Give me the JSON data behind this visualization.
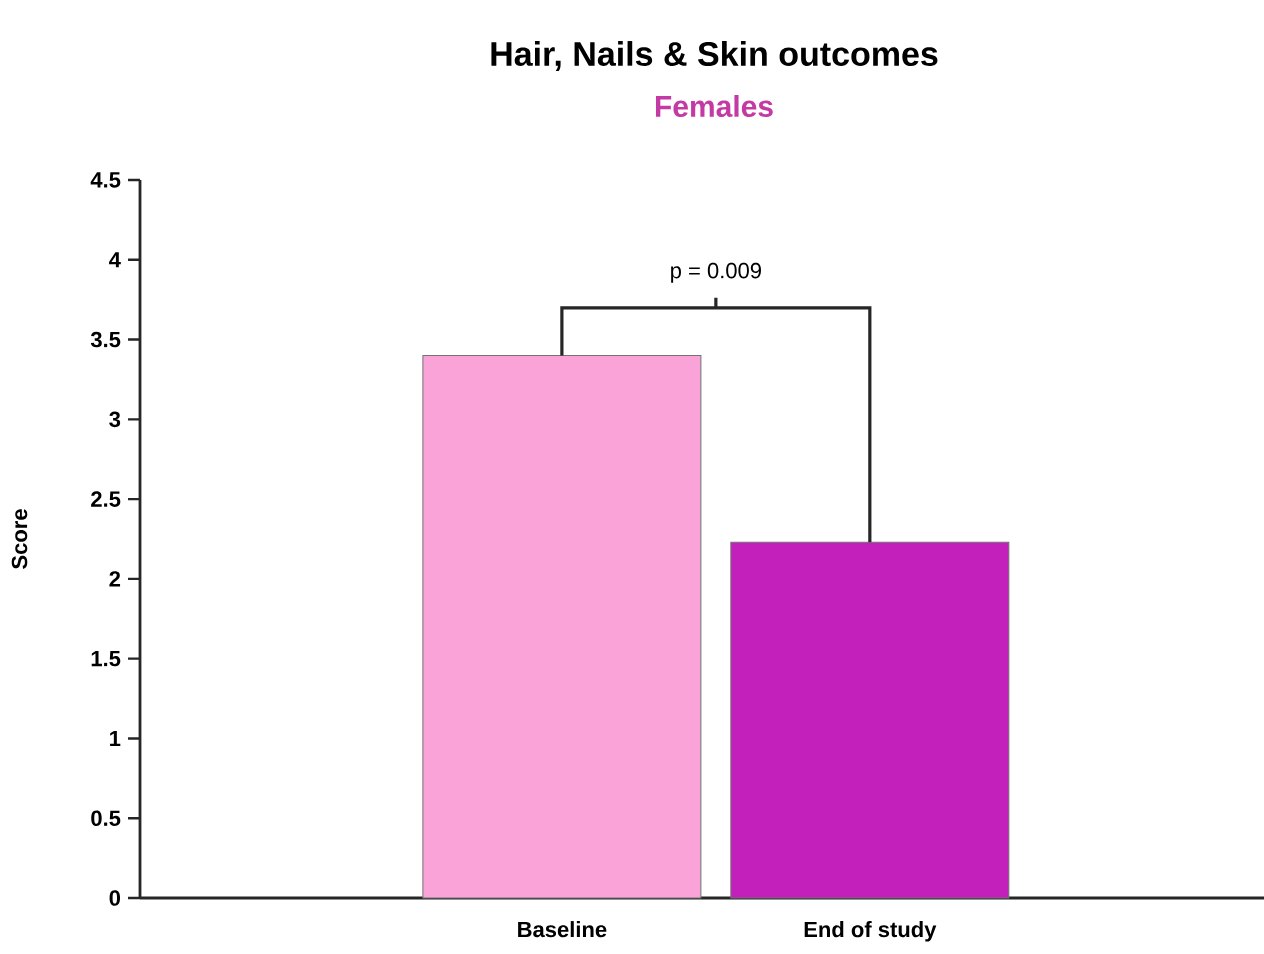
{
  "chart_data": {
    "type": "bar",
    "title": "Hair, Nails & Skin outcomes",
    "subtitle": "Females",
    "ylabel": "Score",
    "categories": [
      "Baseline",
      "End of study"
    ],
    "values": [
      3.4,
      2.23
    ],
    "colors": [
      "#f9a3d8",
      "#c320bb"
    ],
    "ylim": [
      0,
      4.5
    ],
    "yticks": [
      0,
      0.5,
      1,
      1.5,
      2,
      2.5,
      3,
      3.5,
      4,
      4.5
    ],
    "annotations": [
      "p = 0.009"
    ]
  }
}
